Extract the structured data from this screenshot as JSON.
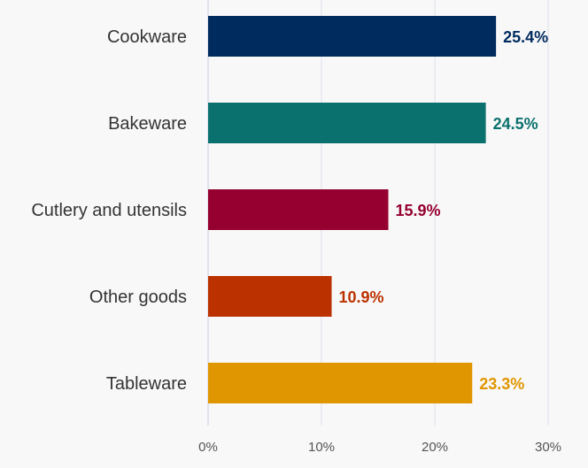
{
  "chart_data": {
    "type": "bar",
    "orientation": "horizontal",
    "title": "",
    "xlabel": "",
    "ylabel": "",
    "categories": [
      "Cookware",
      "Bakeware",
      "Cutlery and utensils",
      "Other goods",
      "Tableware"
    ],
    "values": [
      25.4,
      24.5,
      15.9,
      10.9,
      23.3
    ],
    "value_labels": [
      "25.4%",
      "24.5%",
      "15.9%",
      "10.9%",
      "23.3%"
    ],
    "colors": [
      "#002b5e",
      "#0b716e",
      "#960030",
      "#bb3200",
      "#e09600"
    ],
    "xlim": [
      0,
      30
    ],
    "x_ticks": [
      0,
      10,
      20,
      30
    ],
    "x_tick_labels": [
      "0%",
      "10%",
      "20%",
      "30%"
    ],
    "grid": true,
    "legend": "none"
  }
}
